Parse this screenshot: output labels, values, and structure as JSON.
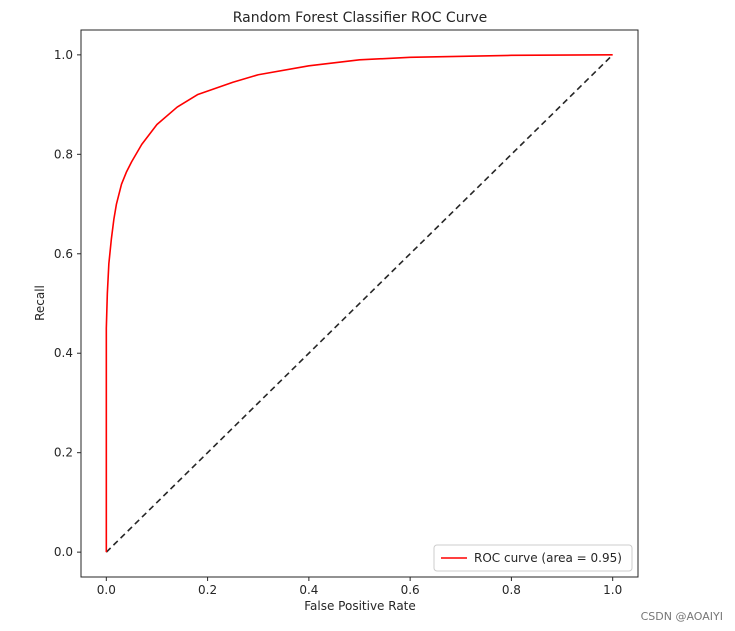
{
  "chart_data": {
    "type": "line",
    "title": "Random Forest Classifier ROC Curve",
    "xlabel": "False Positive Rate",
    "ylabel": "Recall",
    "xlim": [
      -0.05,
      1.05
    ],
    "ylim": [
      -0.05,
      1.05
    ],
    "xticks": [
      "0.0",
      "0.2",
      "0.4",
      "0.6",
      "0.8",
      "1.0"
    ],
    "yticks": [
      "0.0",
      "0.2",
      "0.4",
      "0.6",
      "0.8",
      "1.0"
    ],
    "grid": false,
    "legend_position": "lower-right",
    "series": [
      {
        "name": "ROC curve (area = 0.95)",
        "color": "#ff0000",
        "style": "solid",
        "x": [
          0.0,
          0.0,
          0.002,
          0.005,
          0.01,
          0.015,
          0.02,
          0.03,
          0.04,
          0.05,
          0.07,
          0.1,
          0.14,
          0.18,
          0.25,
          0.3,
          0.4,
          0.5,
          0.6,
          0.8,
          1.0
        ],
        "y": [
          0.0,
          0.45,
          0.52,
          0.58,
          0.63,
          0.67,
          0.7,
          0.74,
          0.765,
          0.785,
          0.82,
          0.86,
          0.895,
          0.92,
          0.945,
          0.96,
          0.978,
          0.99,
          0.995,
          0.999,
          1.0
        ]
      },
      {
        "name": "",
        "color": "#262626",
        "style": "dashed",
        "x": [
          0.0,
          1.0
        ],
        "y": [
          0.0,
          1.0
        ]
      }
    ]
  },
  "watermark": "CSDN @AOAIYI"
}
